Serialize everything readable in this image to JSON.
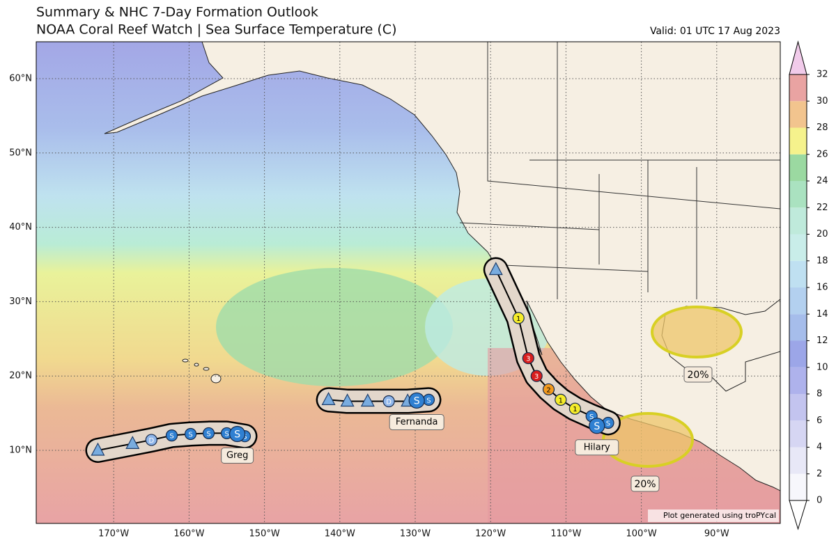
{
  "header": {
    "title": "Summary & NHC 7-Day Formation Outlook",
    "subtitle": "NOAA Coral Reef Watch | Sea Surface Temperature (C)",
    "valid": "Valid: 01 UTC 17 Aug 2023"
  },
  "map": {
    "lat_labels": [
      {
        "lat": 60,
        "label": "60°N"
      },
      {
        "lat": 50,
        "label": "50°N"
      },
      {
        "lat": 40,
        "label": "40°N"
      },
      {
        "lat": 30,
        "label": "30°N"
      },
      {
        "lat": 20,
        "label": "20°N"
      },
      {
        "lat": 10,
        "label": "10°N"
      }
    ],
    "lon_labels": [
      {
        "lon": -170,
        "label": "170°W"
      },
      {
        "lon": -160,
        "label": "160°W"
      },
      {
        "lon": -150,
        "label": "150°W"
      },
      {
        "lon": -140,
        "label": "140°W"
      },
      {
        "lon": -130,
        "label": "130°W"
      },
      {
        "lon": -120,
        "label": "120°W"
      },
      {
        "lon": -110,
        "label": "110°W"
      },
      {
        "lon": -100,
        "label": "100°W"
      },
      {
        "lon": -90,
        "label": "90°W"
      }
    ],
    "symbol_colors": {
      "S": "#2f80d2",
      "D": "#8fb6ea",
      "1": "#f6ec2a",
      "2": "#f39a1e",
      "3": "#d81e1e",
      "triangle": "#79acdf"
    },
    "storms": [
      {
        "name": "Greg",
        "points": [
          {
            "lon": -172.1,
            "lat": 10.0,
            "kind": "triangle"
          },
          {
            "lon": -167.5,
            "lat": 10.9,
            "kind": "triangle"
          },
          {
            "lon": -165.0,
            "lat": 11.4,
            "kind": "forecast",
            "symbol": "D"
          },
          {
            "lon": -162.3,
            "lat": 12.0,
            "kind": "forecast",
            "symbol": "S"
          },
          {
            "lon": -159.8,
            "lat": 12.2,
            "kind": "forecast",
            "symbol": "S"
          },
          {
            "lon": -157.4,
            "lat": 12.3,
            "kind": "forecast",
            "symbol": "S"
          },
          {
            "lon": -155.0,
            "lat": 12.3,
            "kind": "forecast",
            "symbol": "S"
          },
          {
            "lon": -152.6,
            "lat": 11.9,
            "kind": "forecast",
            "symbol": "S"
          },
          {
            "lon": -153.6,
            "lat": 12.2,
            "kind": "current",
            "symbol": "S"
          }
        ]
      },
      {
        "name": "Fernanda",
        "points": [
          {
            "lon": -141.5,
            "lat": 16.8,
            "kind": "triangle"
          },
          {
            "lon": -139.0,
            "lat": 16.6,
            "kind": "triangle"
          },
          {
            "lon": -136.3,
            "lat": 16.6,
            "kind": "triangle"
          },
          {
            "lon": -133.5,
            "lat": 16.6,
            "kind": "forecast",
            "symbol": "D"
          },
          {
            "lon": -131.0,
            "lat": 16.6,
            "kind": "triangle"
          },
          {
            "lon": -128.2,
            "lat": 16.8,
            "kind": "forecast",
            "symbol": "S"
          },
          {
            "lon": -129.8,
            "lat": 16.7,
            "kind": "current",
            "symbol": "S"
          }
        ]
      },
      {
        "name": "Hilary",
        "points": [
          {
            "lon": -119.3,
            "lat": 34.3,
            "kind": "triangle"
          },
          {
            "lon": -116.3,
            "lat": 27.8,
            "kind": "forecast",
            "symbol": "1"
          },
          {
            "lon": -115.0,
            "lat": 22.4,
            "kind": "forecast",
            "symbol": "3"
          },
          {
            "lon": -113.9,
            "lat": 20.0,
            "kind": "forecast",
            "symbol": "3"
          },
          {
            "lon": -112.3,
            "lat": 18.2,
            "kind": "forecast",
            "symbol": "2"
          },
          {
            "lon": -110.7,
            "lat": 16.8,
            "kind": "forecast",
            "symbol": "1"
          },
          {
            "lon": -108.8,
            "lat": 15.6,
            "kind": "forecast",
            "symbol": "1"
          },
          {
            "lon": -106.6,
            "lat": 14.6,
            "kind": "forecast",
            "symbol": "S"
          },
          {
            "lon": -104.4,
            "lat": 13.7,
            "kind": "forecast",
            "symbol": "S"
          },
          {
            "lon": -105.9,
            "lat": 13.3,
            "kind": "current",
            "symbol": "S"
          }
        ]
      }
    ],
    "outlook_areas": [
      {
        "label": "20%"
      },
      {
        "label": "20%"
      }
    ],
    "credit": "Plot generated using troPYcal"
  },
  "colorbar": {
    "ticks": [
      0,
      2,
      4,
      6,
      8,
      10,
      12,
      14,
      16,
      18,
      20,
      22,
      24,
      26,
      28,
      30,
      32
    ],
    "colors": [
      "#f7f7fc",
      "#e8e8f7",
      "#d6d6f3",
      "#c3c4ef",
      "#aeb2ec",
      "#9ca6e8",
      "#a6bdeb",
      "#b3d0ef",
      "#bfe0f1",
      "#c9ede9",
      "#bfeadb",
      "#aae2c0",
      "#9bd9a1",
      "#f5f28c",
      "#f2c48e",
      "#e9a3a2"
    ],
    "under_color": "#ffffff",
    "over_color": "#f1cbea"
  }
}
